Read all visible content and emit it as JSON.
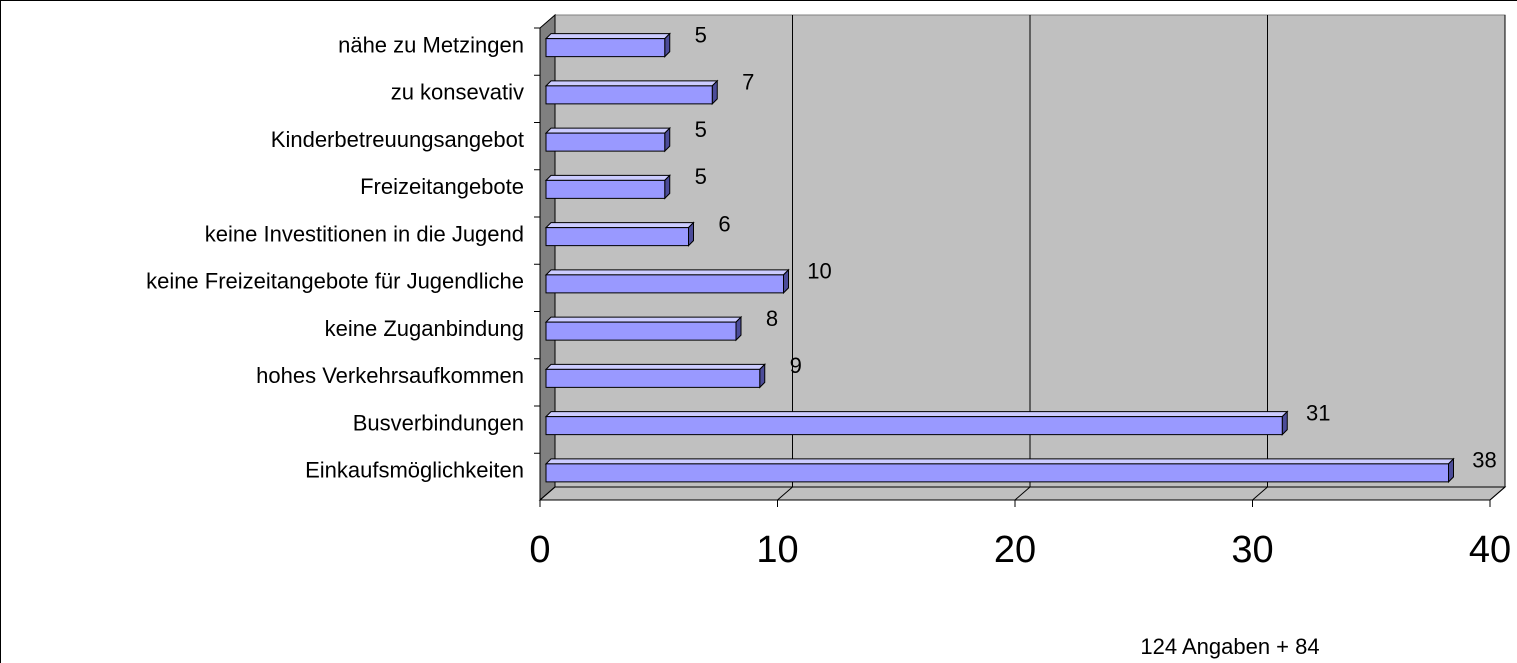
{
  "chart_data": {
    "type": "bar",
    "orientation": "horizontal",
    "categories": [
      "nähe zu Metzingen",
      "zu konsevativ",
      "Kinderbetreuungsangebot",
      "Freizeitangebote",
      "keine Investitionen in die Jugend",
      "keine Freizeitangebote für Jugendliche",
      "keine Zuganbindung",
      "hohes Verkehrsaufkommen",
      "Busverbindungen",
      "Einkaufsmöglichkeiten"
    ],
    "values": [
      5,
      7,
      5,
      5,
      6,
      10,
      8,
      9,
      31,
      38
    ],
    "color": "#9999ff",
    "xlim": [
      0,
      40
    ],
    "xticks": [
      0,
      10,
      20,
      30,
      40
    ],
    "grid": true,
    "annotation": "124 Angaben + 84"
  }
}
